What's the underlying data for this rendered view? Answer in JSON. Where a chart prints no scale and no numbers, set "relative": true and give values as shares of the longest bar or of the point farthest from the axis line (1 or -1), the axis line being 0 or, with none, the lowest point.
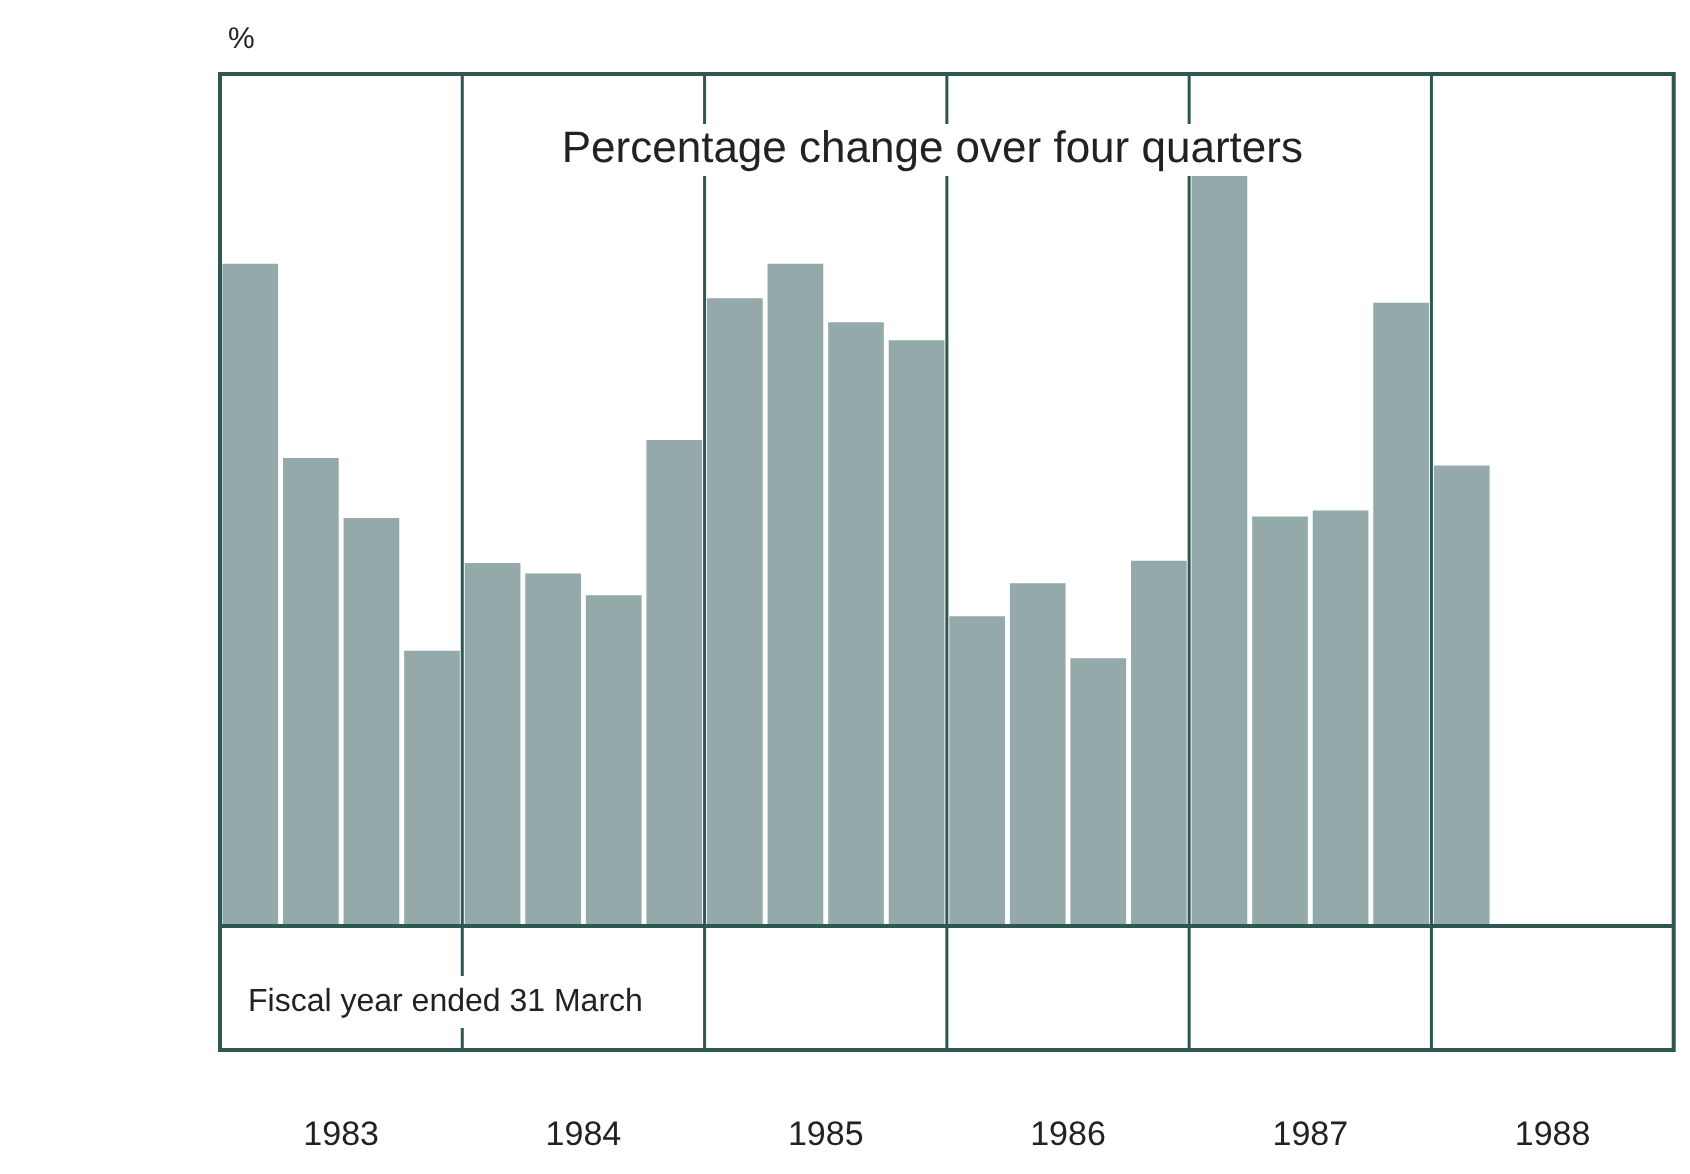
{
  "chart_data": {
    "type": "bar",
    "title": "Percentage change over four quarters",
    "ylabel": "%",
    "categories": [
      null,
      null,
      null,
      null,
      null,
      null,
      null,
      null,
      null,
      null,
      null,
      null,
      null,
      null,
      null,
      null,
      null,
      null,
      null,
      null,
      null
    ],
    "values": [
      0.883,
      0.624,
      0.544,
      0.367,
      0.484,
      0.47,
      0.441,
      0.648,
      0.837,
      0.883,
      0.805,
      0.781,
      0.413,
      0.457,
      0.357,
      0.487,
      1,
      0.546,
      0.554,
      0.831,
      0.614
    ],
    "color": "#93a9aa",
    "relative": true,
    "legend": false,
    "annotations": [
      "Fiscal year ended 31 March",
      "1983",
      "1984",
      "1985",
      "1986",
      "1987",
      "1988"
    ]
  }
}
